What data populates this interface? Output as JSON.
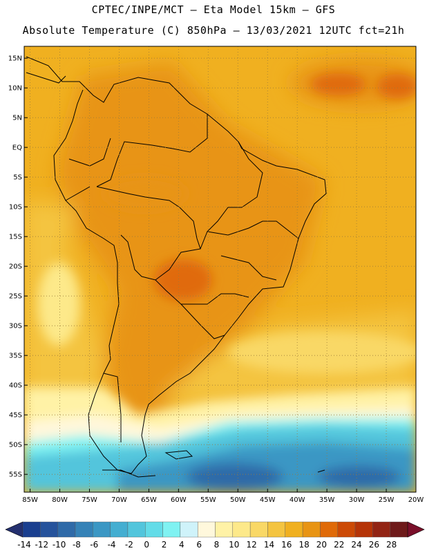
{
  "header": {
    "title_line1": "CPTEC/INPE/MCT –  Eta Model 15km – GFS",
    "title_line2": "Absolute Temperature (C) 850hPa – 13/03/2021 12UTC fct=21h"
  },
  "map": {
    "lat_labels": [
      "15N",
      "10N",
      "5N",
      "EQ",
      "5S",
      "10S",
      "15S",
      "20S",
      "25S",
      "30S",
      "35S",
      "40S",
      "45S",
      "50S",
      "55S"
    ],
    "lon_labels": [
      "85W",
      "80W",
      "75W",
      "70W",
      "65W",
      "60W",
      "55W",
      "50W",
      "45W",
      "40W",
      "35W",
      "30W",
      "25W",
      "20W"
    ],
    "lat_range": [
      -58,
      17
    ],
    "lon_range": [
      -86,
      -20
    ]
  },
  "colorbar": {
    "labels": [
      "-14",
      "-12",
      "-10",
      "-8",
      "-6",
      "-4",
      "-2",
      "0",
      "2",
      "4",
      "6",
      "8",
      "10",
      "12",
      "14",
      "16",
      "18",
      "20",
      "22",
      "24",
      "26",
      "28"
    ],
    "colors": [
      "#1a3f8f",
      "#26539c",
      "#2f6aa8",
      "#3582b7",
      "#3b97c4",
      "#44aed1",
      "#52c5dc",
      "#63dce8",
      "#7ff2f2",
      "#cff3fa",
      "#fff8dc",
      "#fff2a6",
      "#fde98a",
      "#f9d866",
      "#f4c440",
      "#f0b020",
      "#e89414",
      "#e06a08",
      "#cc4a06",
      "#b53408",
      "#922414",
      "#6e1a1a"
    ],
    "under_color": "#24306f",
    "over_color": "#7a0f2a"
  }
}
